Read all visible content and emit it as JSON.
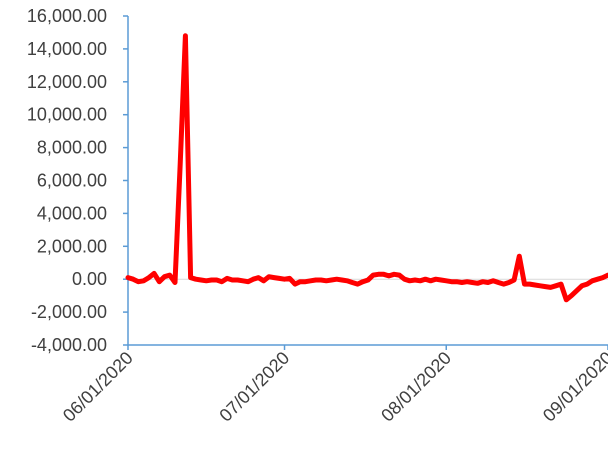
{
  "chart_data": {
    "type": "line",
    "title": "",
    "xlabel": "",
    "ylabel": "",
    "ylim": [
      -4000,
      16000
    ],
    "y_ticks": [
      16000,
      14000,
      12000,
      10000,
      8000,
      6000,
      4000,
      2000,
      0,
      -2000,
      -4000
    ],
    "y_tick_labels": [
      "16,000.00",
      "14,000.00",
      "12,000.00",
      "10,000.00",
      "8,000.00",
      "6,000.00",
      "4,000.00",
      "2,000.00",
      "0.00",
      "-2,000.00",
      "-4,000.00"
    ],
    "x_tick_labels": [
      "06/01/2020",
      "07/01/2020",
      "08/01/2020",
      "09/01/2020"
    ],
    "xlim": [
      "2020-06-01",
      "2020-09-01"
    ],
    "grid": false,
    "legend": "none",
    "series": [
      {
        "color": "#ff0000",
        "points": [
          [
            "2020-06-01",
            100
          ],
          [
            "2020-06-02",
            0
          ],
          [
            "2020-06-03",
            -150
          ],
          [
            "2020-06-04",
            -100
          ],
          [
            "2020-06-05",
            100
          ],
          [
            "2020-06-06",
            350
          ],
          [
            "2020-06-07",
            -150
          ],
          [
            "2020-06-08",
            150
          ],
          [
            "2020-06-09",
            250
          ],
          [
            "2020-06-10",
            -200
          ],
          [
            "2020-06-11",
            7000
          ],
          [
            "2020-06-12",
            14800
          ],
          [
            "2020-06-13",
            100
          ],
          [
            "2020-06-14",
            0
          ],
          [
            "2020-06-15",
            -50
          ],
          [
            "2020-06-16",
            -100
          ],
          [
            "2020-06-17",
            -50
          ],
          [
            "2020-06-18",
            -50
          ],
          [
            "2020-06-19",
            -150
          ],
          [
            "2020-06-20",
            50
          ],
          [
            "2020-06-21",
            -50
          ],
          [
            "2020-06-22",
            -50
          ],
          [
            "2020-06-23",
            -100
          ],
          [
            "2020-06-24",
            -150
          ],
          [
            "2020-06-25",
            0
          ],
          [
            "2020-06-26",
            100
          ],
          [
            "2020-06-27",
            -100
          ],
          [
            "2020-06-28",
            150
          ],
          [
            "2020-06-29",
            100
          ],
          [
            "2020-06-30",
            50
          ],
          [
            "2020-07-01",
            0
          ],
          [
            "2020-07-02",
            50
          ],
          [
            "2020-07-03",
            -300
          ],
          [
            "2020-07-04",
            -150
          ],
          [
            "2020-07-05",
            -150
          ],
          [
            "2020-07-06",
            -100
          ],
          [
            "2020-07-07",
            -50
          ],
          [
            "2020-07-08",
            -50
          ],
          [
            "2020-07-09",
            -100
          ],
          [
            "2020-07-10",
            -50
          ],
          [
            "2020-07-11",
            0
          ],
          [
            "2020-07-12",
            -50
          ],
          [
            "2020-07-13",
            -100
          ],
          [
            "2020-07-14",
            -200
          ],
          [
            "2020-07-15",
            -300
          ],
          [
            "2020-07-16",
            -150
          ],
          [
            "2020-07-17",
            -50
          ],
          [
            "2020-07-18",
            250
          ],
          [
            "2020-07-19",
            300
          ],
          [
            "2020-07-20",
            300
          ],
          [
            "2020-07-21",
            200
          ],
          [
            "2020-07-22",
            300
          ],
          [
            "2020-07-23",
            250
          ],
          [
            "2020-07-24",
            0
          ],
          [
            "2020-07-25",
            -100
          ],
          [
            "2020-07-26",
            -50
          ],
          [
            "2020-07-27",
            -100
          ],
          [
            "2020-07-28",
            0
          ],
          [
            "2020-07-29",
            -100
          ],
          [
            "2020-07-30",
            0
          ],
          [
            "2020-07-31",
            -50
          ],
          [
            "2020-08-01",
            -100
          ],
          [
            "2020-08-02",
            -150
          ],
          [
            "2020-08-03",
            -150
          ],
          [
            "2020-08-04",
            -200
          ],
          [
            "2020-08-05",
            -150
          ],
          [
            "2020-08-06",
            -200
          ],
          [
            "2020-08-07",
            -250
          ],
          [
            "2020-08-08",
            -150
          ],
          [
            "2020-08-09",
            -200
          ],
          [
            "2020-08-10",
            -100
          ],
          [
            "2020-08-11",
            -200
          ],
          [
            "2020-08-12",
            -300
          ],
          [
            "2020-08-13",
            -200
          ],
          [
            "2020-08-14",
            -50
          ],
          [
            "2020-08-15",
            1400
          ],
          [
            "2020-08-16",
            -300
          ],
          [
            "2020-08-17",
            -300
          ],
          [
            "2020-08-18",
            -350
          ],
          [
            "2020-08-19",
            -400
          ],
          [
            "2020-08-20",
            -450
          ],
          [
            "2020-08-21",
            -500
          ],
          [
            "2020-08-22",
            -400
          ],
          [
            "2020-08-23",
            -300
          ],
          [
            "2020-08-24",
            -1250
          ],
          [
            "2020-08-25",
            -1000
          ],
          [
            "2020-08-26",
            -700
          ],
          [
            "2020-08-27",
            -400
          ],
          [
            "2020-08-28",
            -300
          ],
          [
            "2020-08-29",
            -100
          ],
          [
            "2020-08-30",
            0
          ],
          [
            "2020-08-31",
            100
          ],
          [
            "2020-09-01",
            250
          ]
        ]
      }
    ]
  }
}
